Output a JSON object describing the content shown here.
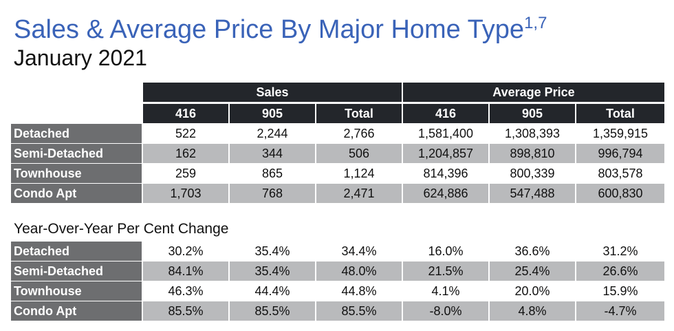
{
  "title": "Sales & Average Price By Major Home Type",
  "title_superscript": "1,7",
  "subtitle": "January 2021",
  "header": {
    "sales_group": "Sales",
    "avg_price_group": "Average Price",
    "columns": [
      "416",
      "905",
      "Total",
      "416",
      "905",
      "Total"
    ]
  },
  "sales_table": {
    "rows": [
      {
        "label": "Detached",
        "values": [
          "522",
          "2,244",
          "2,766",
          "1,581,400",
          "1,308,393",
          "1,359,915"
        ]
      },
      {
        "label": "Semi-Detached",
        "values": [
          "162",
          "344",
          "506",
          "1,204,857",
          "898,810",
          "996,794"
        ]
      },
      {
        "label": "Townhouse",
        "values": [
          "259",
          "865",
          "1,124",
          "814,396",
          "800,339",
          "803,578"
        ]
      },
      {
        "label": "Condo Apt",
        "values": [
          "1,703",
          "768",
          "2,471",
          "624,886",
          "547,488",
          "600,830"
        ]
      }
    ]
  },
  "yoy_title": "Year-Over-Year Per Cent Change",
  "yoy_table": {
    "rows": [
      {
        "label": "Detached",
        "values": [
          "30.2%",
          "35.4%",
          "34.4%",
          "16.0%",
          "36.6%",
          "31.2%"
        ]
      },
      {
        "label": "Semi-Detached",
        "values": [
          "84.1%",
          "35.4%",
          "48.0%",
          "21.5%",
          "25.4%",
          "26.6%"
        ]
      },
      {
        "label": "Townhouse",
        "values": [
          "46.3%",
          "44.4%",
          "44.8%",
          "4.1%",
          "20.0%",
          "15.9%"
        ]
      },
      {
        "label": "Condo Apt",
        "values": [
          "85.5%",
          "85.5%",
          "85.5%",
          "-8.0%",
          "4.8%",
          "-4.7%"
        ]
      }
    ]
  }
}
